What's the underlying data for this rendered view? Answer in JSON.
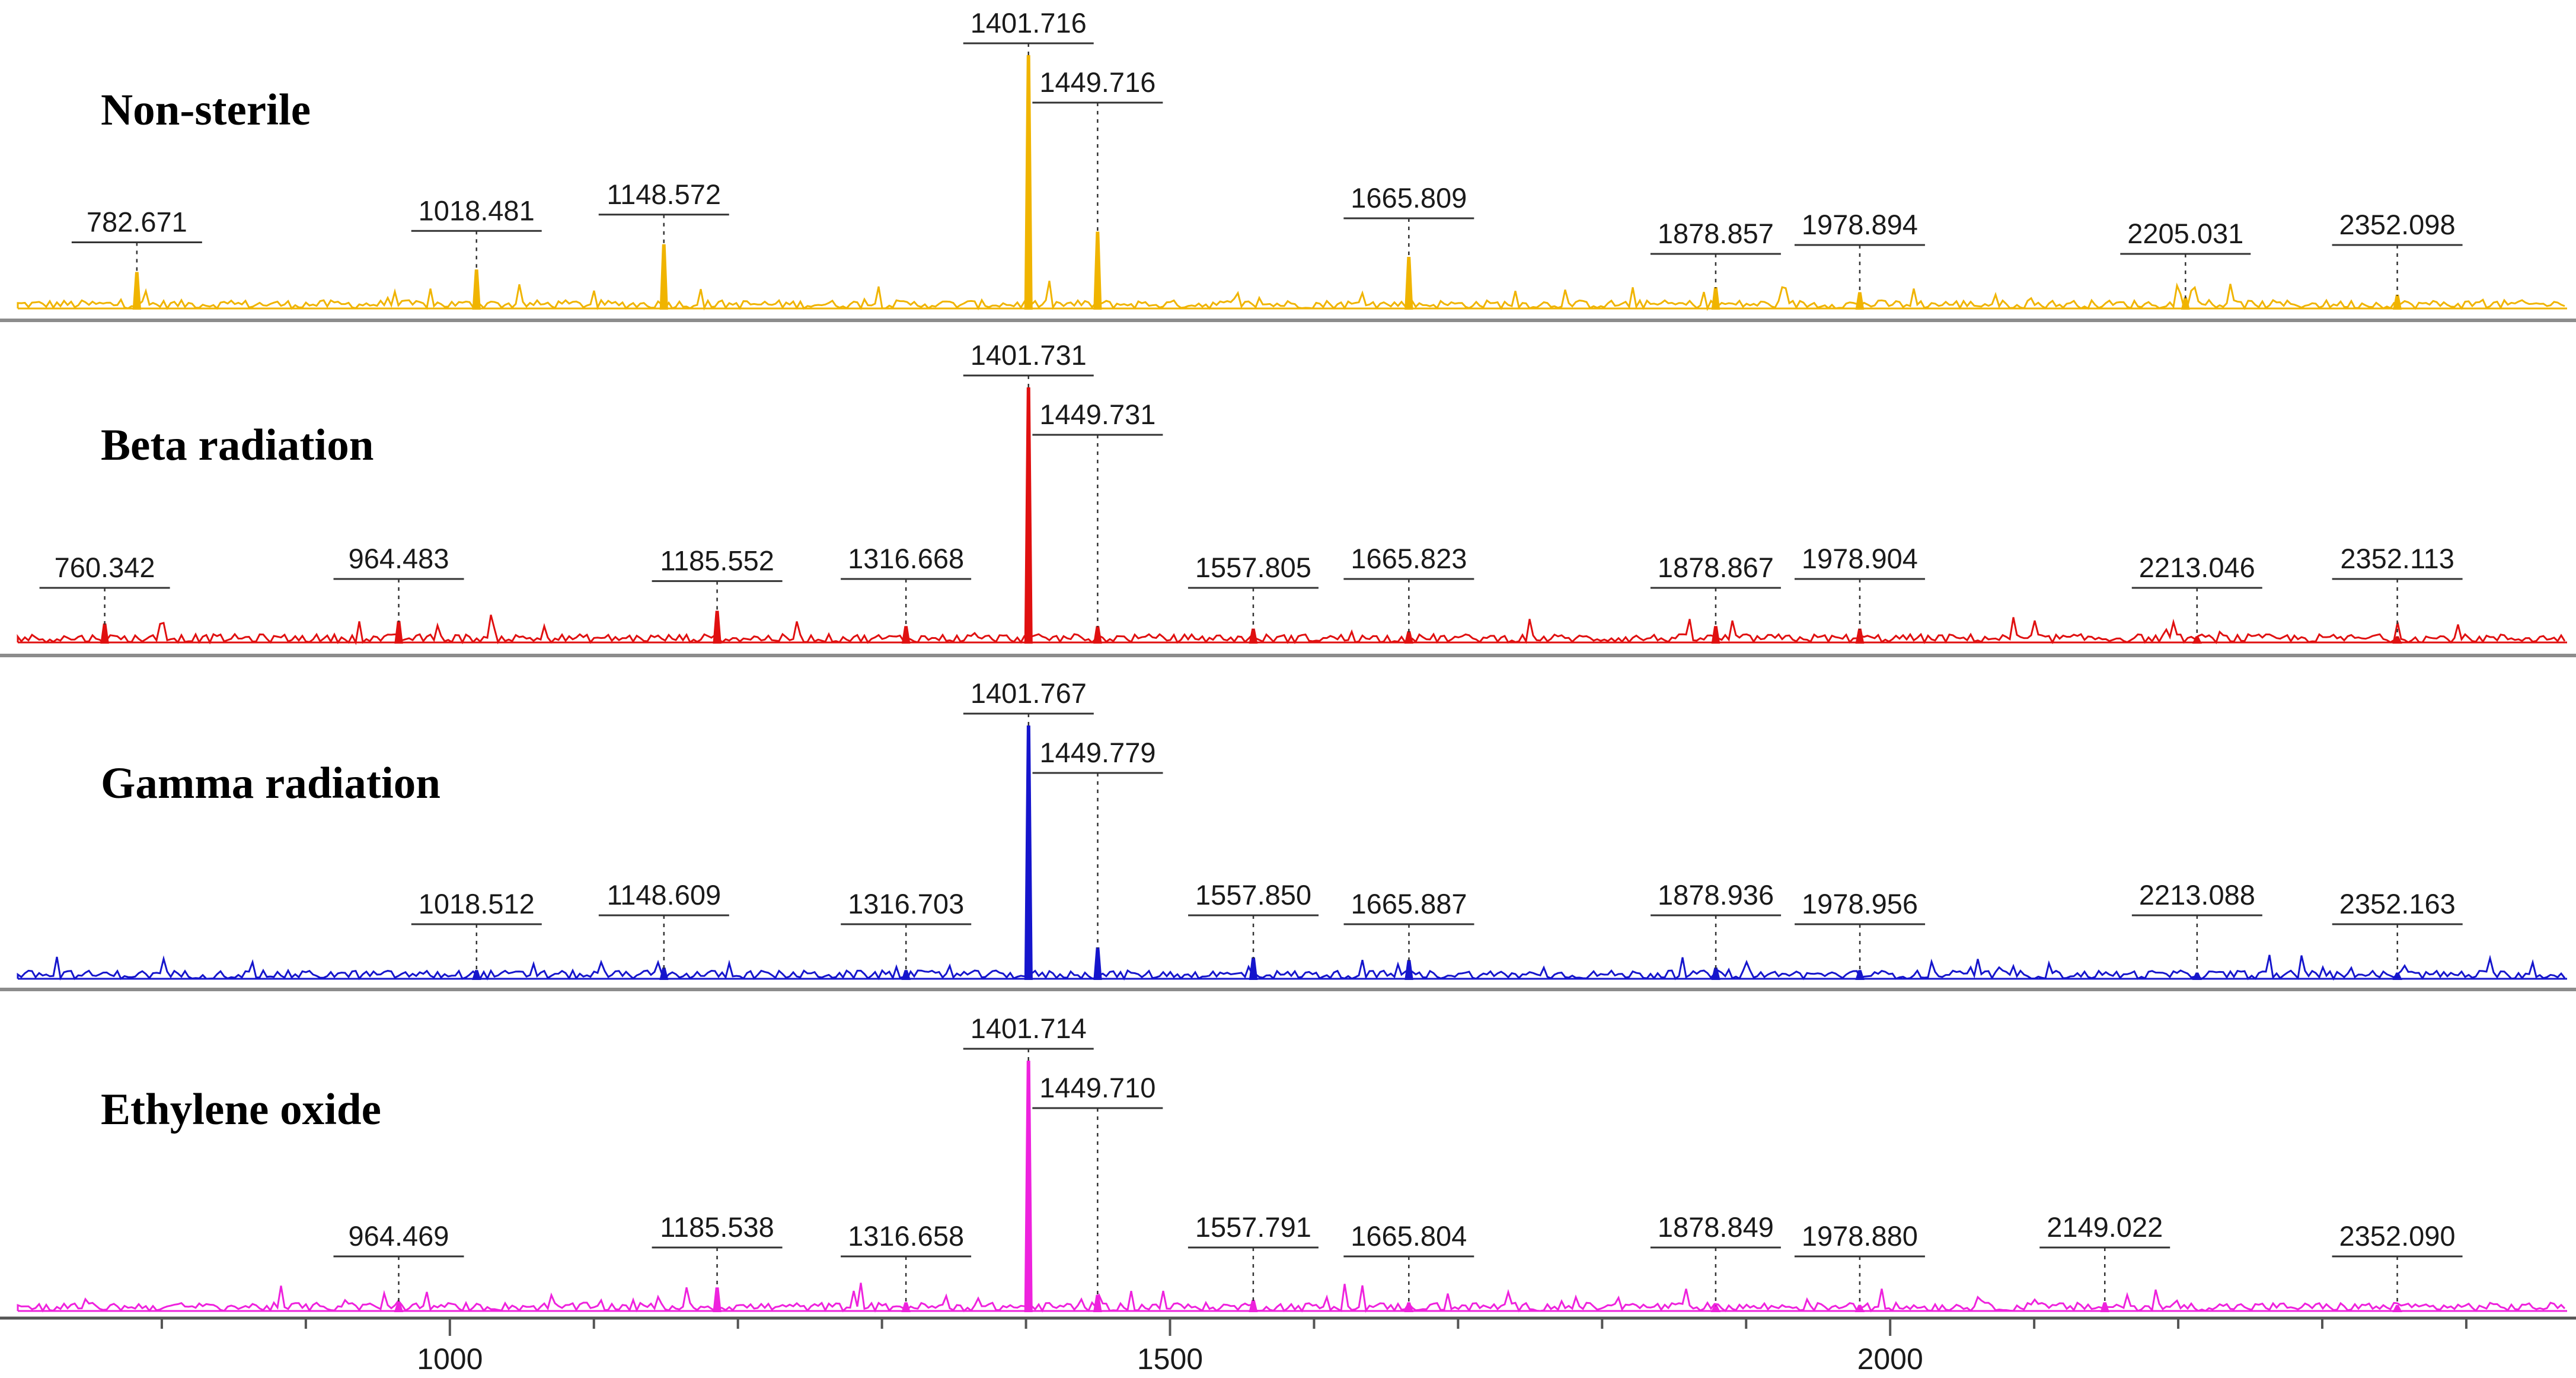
{
  "chart_data": {
    "type": "line",
    "xlim": [
      700,
      2470
    ],
    "x_ticks": [
      1000,
      1500,
      2000
    ],
    "x_minor_step": 100,
    "grid": false,
    "xlabel": "",
    "ylabel": "",
    "series": [
      {
        "name": "Non-sterile",
        "color": "#f0b400",
        "peaks": [
          {
            "x": 782.671,
            "h": 0.14,
            "label": "782.671"
          },
          {
            "x": 1018.481,
            "h": 0.15,
            "label": "1018.481"
          },
          {
            "x": 1148.572,
            "h": 0.25,
            "label": "1148.572"
          },
          {
            "x": 1401.716,
            "h": 1.0,
            "label": "1401.716"
          },
          {
            "x": 1449.716,
            "h": 0.3,
            "label": "1449.716"
          },
          {
            "x": 1665.809,
            "h": 0.2,
            "label": "1665.809"
          },
          {
            "x": 1878.857,
            "h": 0.08,
            "label": "1878.857"
          },
          {
            "x": 1978.894,
            "h": 0.06,
            "label": "1978.894"
          },
          {
            "x": 2205.031,
            "h": 0.04,
            "label": "2205.031"
          },
          {
            "x": 2352.098,
            "h": 0.05,
            "label": "2352.098"
          }
        ]
      },
      {
        "name": "Beta radiation",
        "color": "#e01010",
        "peaks": [
          {
            "x": 760.342,
            "h": 0.07,
            "label": "760.342"
          },
          {
            "x": 964.483,
            "h": 0.08,
            "label": "964.483"
          },
          {
            "x": 1185.552,
            "h": 0.12,
            "label": "1185.552"
          },
          {
            "x": 1316.668,
            "h": 0.06,
            "label": "1316.668"
          },
          {
            "x": 1401.731,
            "h": 1.0,
            "label": "1401.731"
          },
          {
            "x": 1449.731,
            "h": 0.06,
            "label": "1449.731"
          },
          {
            "x": 1557.805,
            "h": 0.05,
            "label": "1557.805"
          },
          {
            "x": 1665.823,
            "h": 0.04,
            "label": "1665.823"
          },
          {
            "x": 1878.867,
            "h": 0.06,
            "label": "1878.867"
          },
          {
            "x": 1978.904,
            "h": 0.05,
            "label": "1978.904"
          },
          {
            "x": 2213.046,
            "h": 0.02,
            "label": "2213.046"
          },
          {
            "x": 2352.113,
            "h": 0.02,
            "label": "2352.113"
          }
        ]
      },
      {
        "name": "Gamma radiation",
        "color": "#1515cc",
        "peaks": [
          {
            "x": 1018.512,
            "h": 0.03,
            "label": "1018.512"
          },
          {
            "x": 1148.609,
            "h": 0.04,
            "label": "1148.609"
          },
          {
            "x": 1316.703,
            "h": 0.03,
            "label": "1316.703"
          },
          {
            "x": 1401.767,
            "h": 1.0,
            "label": "1401.767"
          },
          {
            "x": 1449.779,
            "h": 0.12,
            "label": "1449.779"
          },
          {
            "x": 1557.85,
            "h": 0.08,
            "label": "1557.850"
          },
          {
            "x": 1665.887,
            "h": 0.07,
            "label": "1665.887"
          },
          {
            "x": 1878.936,
            "h": 0.04,
            "label": "1878.936"
          },
          {
            "x": 1978.956,
            "h": 0.03,
            "label": "1978.956"
          },
          {
            "x": 2213.088,
            "h": 0.02,
            "label": "2213.088"
          },
          {
            "x": 2352.163,
            "h": 0.02,
            "label": "2352.163"
          }
        ]
      },
      {
        "name": "Ethylene oxide",
        "color": "#ee22dd",
        "peaks": [
          {
            "x": 964.469,
            "h": 0.03,
            "label": "964.469"
          },
          {
            "x": 1185.538,
            "h": 0.09,
            "label": "1185.538"
          },
          {
            "x": 1316.658,
            "h": 0.03,
            "label": "1316.658"
          },
          {
            "x": 1401.714,
            "h": 1.0,
            "label": "1401.714"
          },
          {
            "x": 1449.71,
            "h": 0.06,
            "label": "1449.710"
          },
          {
            "x": 1557.791,
            "h": 0.04,
            "label": "1557.791"
          },
          {
            "x": 1665.804,
            "h": 0.03,
            "label": "1665.804"
          },
          {
            "x": 1878.849,
            "h": 0.02,
            "label": "1878.849"
          },
          {
            "x": 1978.88,
            "h": 0.02,
            "label": "1978.880"
          },
          {
            "x": 2149.022,
            "h": 0.03,
            "label": "2149.022"
          },
          {
            "x": 2352.09,
            "h": 0.01,
            "label": "2352.090"
          }
        ]
      }
    ]
  }
}
